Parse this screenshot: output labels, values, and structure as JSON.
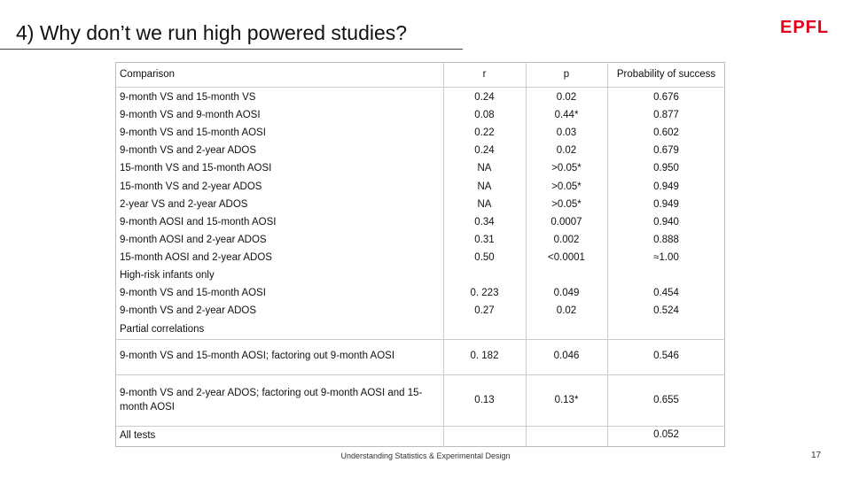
{
  "header": {
    "title": "4) Why don’t we run high powered studies?",
    "logo": "EPFL"
  },
  "table": {
    "columns": [
      "Comparison",
      "r",
      "p",
      "Probability of success"
    ],
    "rows": [
      {
        "comparison": "9-month VS and 15-month VS",
        "r": "0.24",
        "p": "0.02",
        "probability": "0.676"
      },
      {
        "comparison": "9-month VS and 9-month AOSI",
        "r": "0.08",
        "p": "0.44*",
        "probability": "0.877"
      },
      {
        "comparison": "9-month VS and 15-month AOSI",
        "r": "0.22",
        "p": "0.03",
        "probability": "0.602"
      },
      {
        "comparison": "9-month VS and 2-year ADOS",
        "r": "0.24",
        "p": "0.02",
        "probability": "0.679"
      },
      {
        "comparison": "15-month VS and 15-month AOSI",
        "r": "NA",
        "p": ">0.05*",
        "probability": "0.950"
      },
      {
        "comparison": "15-month VS and 2-year ADOS",
        "r": "NA",
        "p": ">0.05*",
        "probability": "0.949"
      },
      {
        "comparison": "2-year VS and 2-year ADOS",
        "r": "NA",
        "p": ">0.05*",
        "probability": "0.949"
      },
      {
        "comparison": "9-month AOSI and 15-month AOSI",
        "r": "0.34",
        "p": "0.0007",
        "probability": "0.940"
      },
      {
        "comparison": "9-month AOSI and 2-year ADOS",
        "r": "0.31",
        "p": "0.002",
        "probability": "0.888"
      },
      {
        "comparison": "15-month AOSI and 2-year ADOS",
        "r": "0.50",
        "p": "<0.0001",
        "probability": "≈1.00"
      },
      {
        "comparison": "High-risk infants only"
      },
      {
        "comparison": "9-month VS and 15-month AOSI",
        "r": "0. 223",
        "p": "0.049",
        "probability": "0.454"
      },
      {
        "comparison": "9-month VS and 2-year ADOS",
        "r": "0.27",
        "p": "0.02",
        "probability": "0.524"
      },
      {
        "comparison": "Partial correlations"
      },
      {
        "comparison": "9-month VS and 15-month AOSI; factoring out 9-month AOSI",
        "r": "0. 182",
        "p": "0.046",
        "probability": "0.546"
      },
      {
        "comparison": "9-month VS and 2-year ADOS;  factoring out 9-month AOSI and 15-month AOSI",
        "r": "0.13",
        "p": "0.13*",
        "probability": "0.655"
      },
      {
        "comparison": "All tests",
        "probability": "0.052"
      }
    ]
  },
  "footer": {
    "text": "Understanding Statistics & Experimental Design",
    "page": "17"
  }
}
